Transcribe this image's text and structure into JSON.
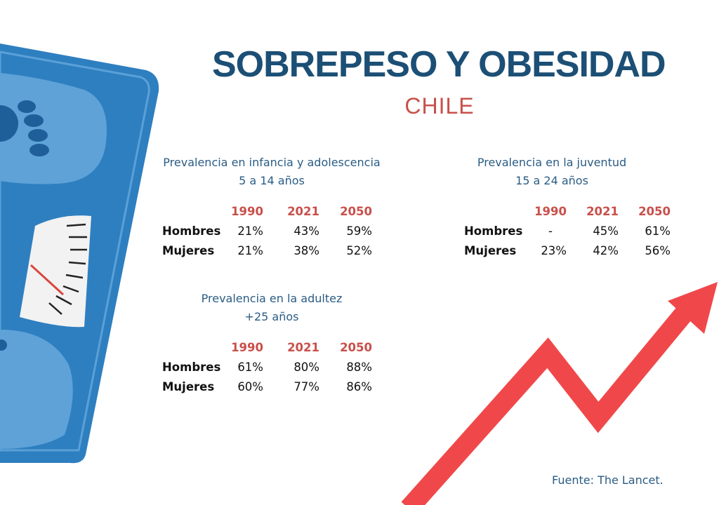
{
  "title": "SOBREPESO Y OBESIDAD",
  "subtitle": "CHILE",
  "colors": {
    "title": "#1c4f75",
    "accent": "#c8504b",
    "heading": "#2a5c84",
    "scale_blue": "#2e7fc0",
    "arrow_red": "#f0484a"
  },
  "years": [
    "1990",
    "2021",
    "2050"
  ],
  "sections": {
    "infancia": {
      "heading_line1": "Prevalencia en infancia y adolescencia",
      "heading_line2": "5 a 14 años",
      "rows": [
        {
          "label": "Hombres",
          "values": [
            "21%",
            "43%",
            "59%"
          ]
        },
        {
          "label": "Mujeres",
          "values": [
            "21%",
            "38%",
            "52%"
          ]
        }
      ]
    },
    "juventud": {
      "heading_line1": "Prevalencia en la juventud",
      "heading_line2": "15 a 24 años",
      "rows": [
        {
          "label": "Hombres",
          "values": [
            "-",
            "45%",
            "61%"
          ]
        },
        {
          "label": "Mujeres",
          "values": [
            "23%",
            "42%",
            "56%"
          ]
        }
      ]
    },
    "adultez": {
      "heading_line1": "Prevalencia en la adultez",
      "heading_line2": "+25 años",
      "rows": [
        {
          "label": "Hombres",
          "values": [
            "61%",
            "80%",
            "88%"
          ]
        },
        {
          "label": "Mujeres",
          "values": [
            "60%",
            "77%",
            "86%"
          ]
        }
      ]
    }
  },
  "source": "Fuente: The Lancet.",
  "icons": [
    "bathroom-scale-illustration",
    "rising-arrow-illustration"
  ]
}
